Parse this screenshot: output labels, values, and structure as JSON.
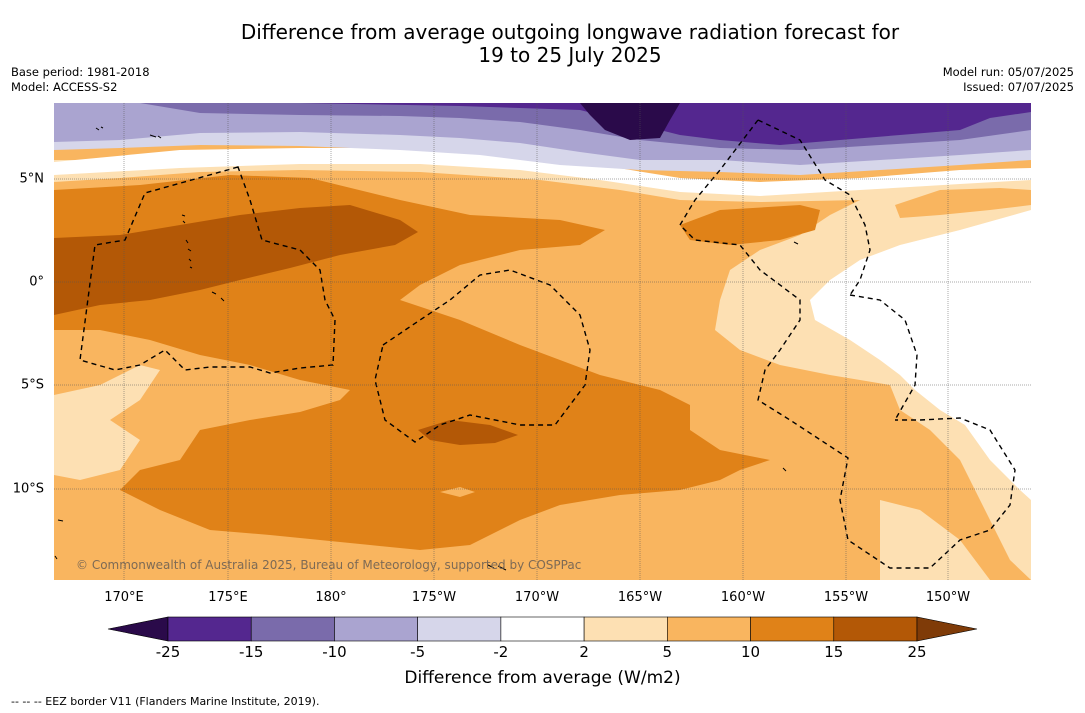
{
  "title_line1": "Difference from average outgoing longwave radiation forecast for",
  "title_line2": "19 to 25 July 2025",
  "meta_left": {
    "base_period": "Base period: 1981-2018",
    "model": "Model: ACCESS-S2"
  },
  "meta_right": {
    "model_run": "Model run: 05/07/2025",
    "issued": "Issued: 07/07/2025"
  },
  "map": {
    "lon_labels": [
      "170°E",
      "175°E",
      "180°",
      "175°W",
      "170°W",
      "165°W",
      "160°W",
      "155°W",
      "150°W"
    ],
    "lat_labels": [
      "5°N",
      "0°",
      "5°S",
      "10°S"
    ],
    "copyright": "© Commonwealth of Australia 2025, Bureau of Meteorology, supported by COSPPac"
  },
  "colorbar": {
    "ticks": [
      "-25",
      "-15",
      "-10",
      "-5",
      "-2",
      "2",
      "5",
      "10",
      "15",
      "25"
    ],
    "colors": [
      "#2a0a4a",
      "#54278f",
      "#7a6bab",
      "#aaa4d0",
      "#d6d6ea",
      "#ffffff",
      "#fde0b3",
      "#f9b55f",
      "#e08218",
      "#b35806",
      "#7f3b08"
    ],
    "label": "Difference from average (W/m2)"
  },
  "legend_note": "--  --  -- EEZ border V11 (Flanders Marine Institute, 2019)."
}
